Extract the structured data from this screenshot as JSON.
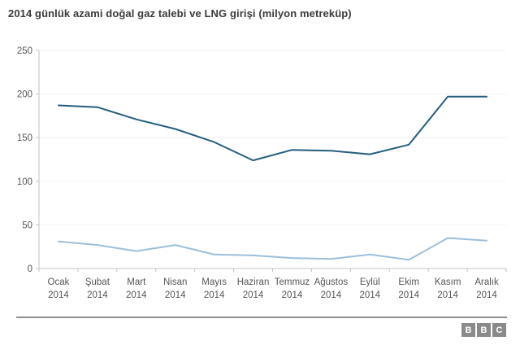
{
  "title": "2014 günlük azami doğal gaz talebi ve LNG girişi (milyon metreküp)",
  "footer": {
    "logo_letters": [
      "B",
      "B",
      "C"
    ]
  },
  "colors": {
    "demand_line": "#255e7e",
    "lng_line": "#9cbfda",
    "axis": "#c3c3c3",
    "gridline": "#f0f0f0",
    "tick_label": "#555555"
  },
  "chart_data": {
    "type": "line",
    "title": "2014 günlük azami doğal gaz talebi ve LNG girişi (milyon metreküp)",
    "categories": [
      "Ocak",
      "Şubat",
      "Mart",
      "Nisan",
      "Mayıs",
      "Haziran",
      "Temmuz",
      "Ağustos",
      "Eylül",
      "Ekim",
      "Kasım",
      "Aralık"
    ],
    "category_year": "2014",
    "series": [
      {
        "id": "demand",
        "name": "Günlük azami doğal gaz talebi",
        "color": "#255e7e",
        "values": [
          187,
          185,
          171,
          160,
          145,
          124,
          136,
          135,
          131,
          142,
          197,
          197
        ]
      },
      {
        "id": "lng",
        "name": "LNG girişi",
        "color": "#9cbfda",
        "values": [
          31,
          27,
          20,
          27,
          16,
          15,
          12,
          11,
          16,
          10,
          35,
          32
        ]
      }
    ],
    "yticks": [
      0,
      50,
      100,
      150,
      200,
      250
    ],
    "ylim": [
      0,
      250
    ],
    "xlabel": "",
    "ylabel": "",
    "grid": true,
    "legend": "none"
  }
}
